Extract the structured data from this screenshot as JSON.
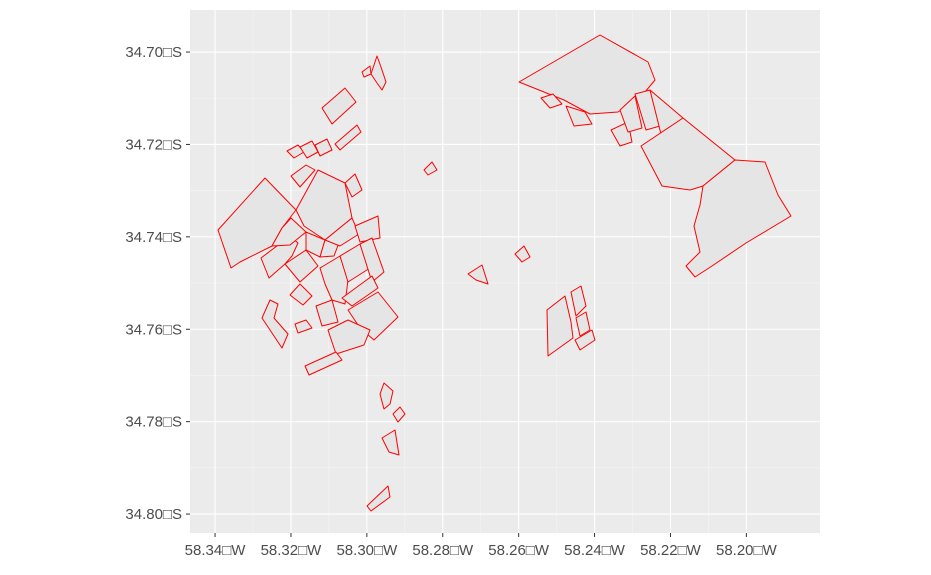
{
  "map": {
    "x_ticks": [
      {
        "value": -58.34,
        "label": "58.34□W"
      },
      {
        "value": -58.32,
        "label": "58.32□W"
      },
      {
        "value": -58.3,
        "label": "58.30□W"
      },
      {
        "value": -58.28,
        "label": "58.28□W"
      },
      {
        "value": -58.26,
        "label": "58.26□W"
      },
      {
        "value": -58.24,
        "label": "58.24□W"
      },
      {
        "value": -58.22,
        "label": "58.22□W"
      },
      {
        "value": -58.2,
        "label": "58.20□W"
      }
    ],
    "y_ticks": [
      {
        "value": -34.7,
        "label": "34.70□S"
      },
      {
        "value": -34.72,
        "label": "34.72□S"
      },
      {
        "value": -34.74,
        "label": "34.74□S"
      },
      {
        "value": -34.76,
        "label": "34.76□S"
      },
      {
        "value": -34.78,
        "label": "34.78□S"
      },
      {
        "value": -34.8,
        "label": "34.80□S"
      }
    ],
    "xlim": [
      -58.3466,
      -58.1806
    ],
    "ylim": [
      -34.8041,
      -34.6909
    ],
    "panel_color": "#ebebeb",
    "parcel_fill": "#e5e5e5",
    "parcel_stroke": "#ff0000"
  }
}
